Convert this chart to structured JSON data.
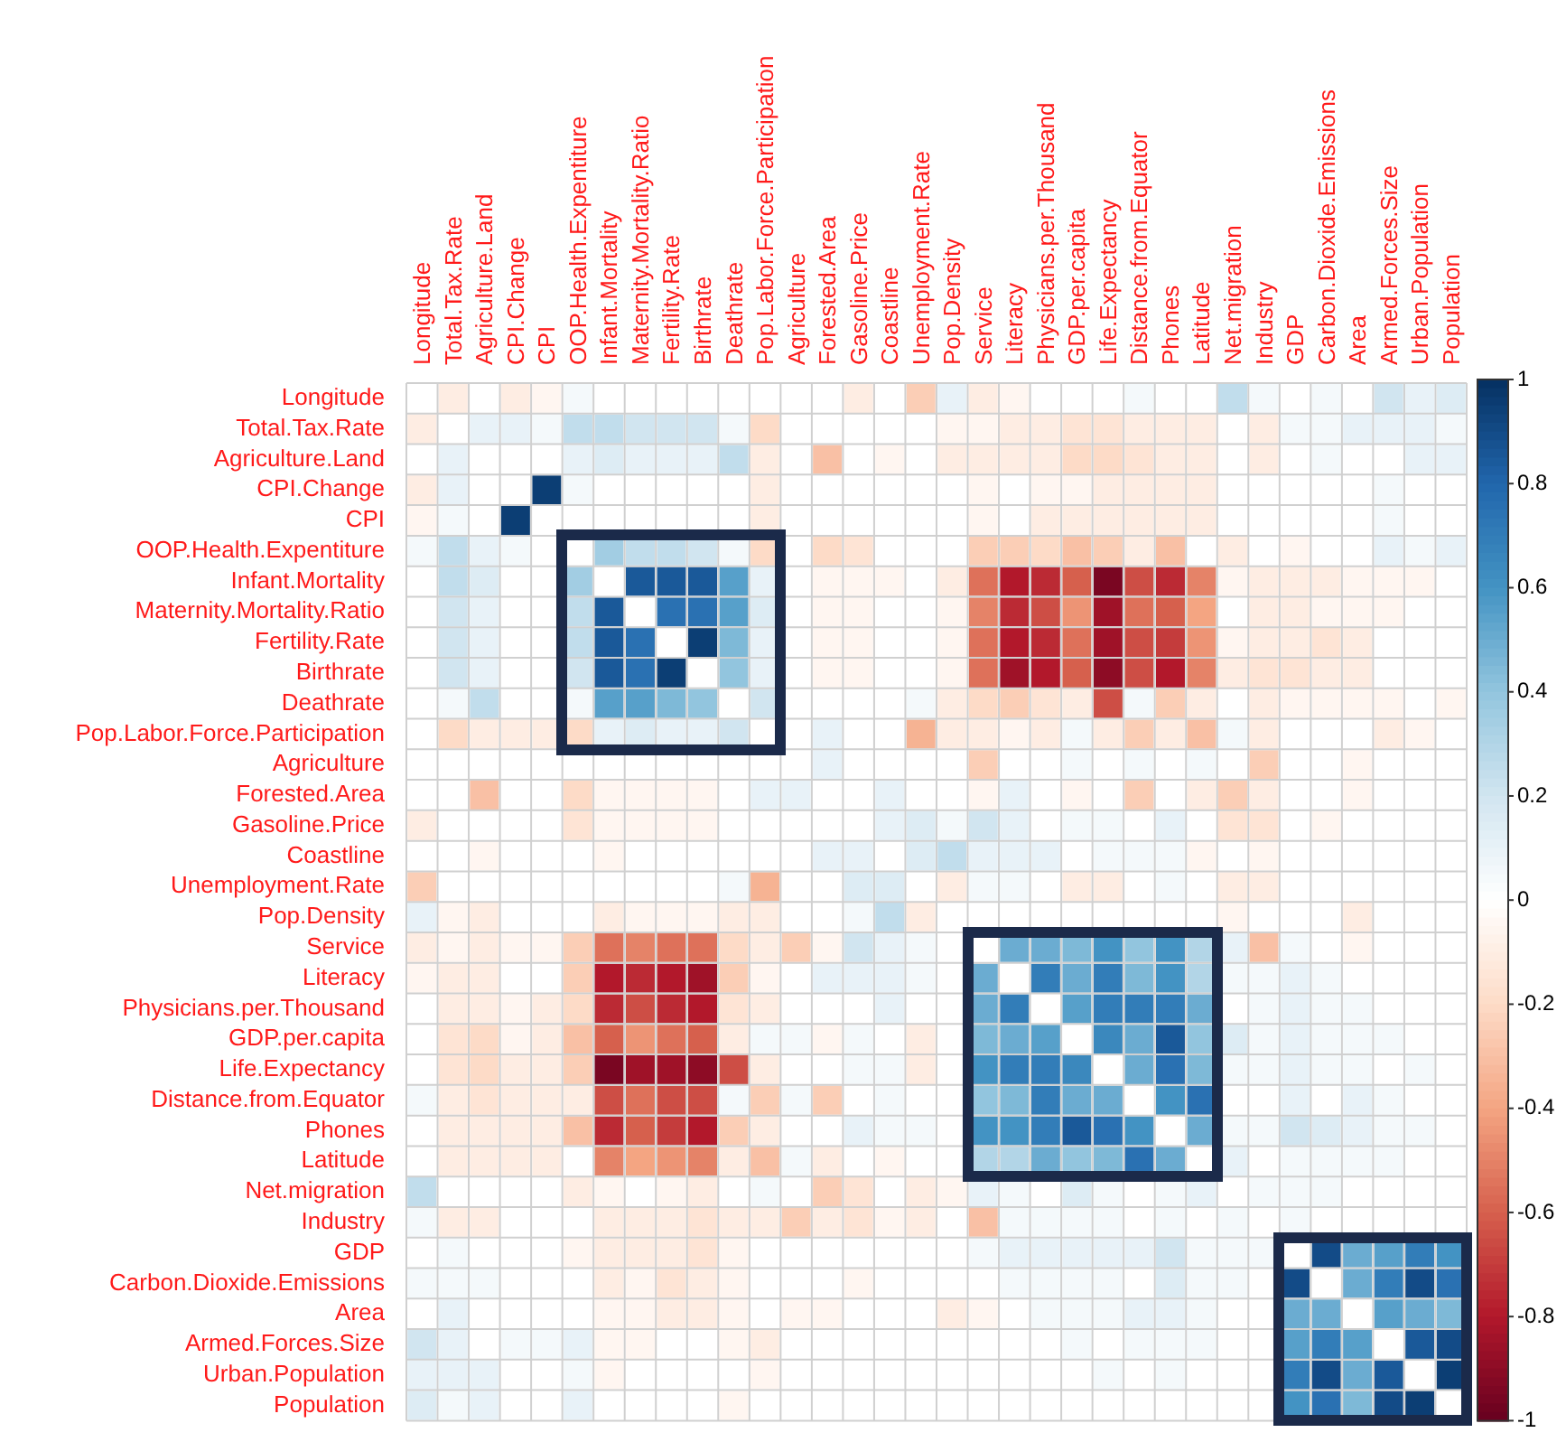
{
  "chart_data": {
    "type": "heatmap",
    "grid": true,
    "clim": [
      -1,
      1
    ],
    "cticks": [
      1,
      0.8,
      0.6,
      0.4,
      0.2,
      0,
      -0.2,
      -0.4,
      -0.6,
      -0.8,
      -1
    ],
    "categories": [
      "Longitude",
      "Total.Tax.Rate",
      "Agriculture.Land",
      "CPI.Change",
      "CPI",
      "OOP.Health.Expentiture",
      "Infant.Mortality",
      "Maternity.Mortality.Ratio",
      "Fertility.Rate",
      "Birthrate",
      "Deathrate",
      "Pop.Labor.Force.Participation",
      "Agriculture",
      "Forested.Area",
      "Gasoline.Price",
      "Coastline",
      "Unemployment.Rate",
      "Pop.Density",
      "Service",
      "Literacy",
      "Physicians.per.Thousand",
      "GDP.per.capita",
      "Life.Expectancy",
      "Distance.from.Equator",
      "Phones",
      "Latitude",
      "Net.migration",
      "Industry",
      "GDP",
      "Carbon.Dioxide.Emissions",
      "Area",
      "Armed.Forces.Size",
      "Urban.Population",
      "Population"
    ],
    "y_categories": [
      "Longitude",
      "Total.Tax.Rate",
      "Agriculture.Land",
      "CPI.Change",
      "CPI",
      "OOP.Health.Expentiture",
      "Infant.Mortality",
      "Maternity.Mortality.Ratio",
      "Fertility.Rate",
      "Birthrate",
      "Deathrate",
      "Pop.Labor.Force.Participation",
      "Agriculture",
      "Forested.Area",
      "Gasoline.Price",
      "Coastline",
      "Unemployment.Rate",
      "Pop.Density",
      "Service",
      "Literacy",
      "Physicians.per.Thousand",
      "GDP.per.capita",
      "Life.Expectancy",
      "Distance.from.Equator",
      "Phones",
      "Latitude",
      "Net.migration",
      "Industry",
      "GDP",
      "Carbon.Dioxide.Emissions",
      "Area",
      "Armed.Forces.Size",
      "Urban.Population",
      "Population"
    ],
    "cells": [
      [
        null,
        -0.1,
        0,
        -0.1,
        -0.05,
        0.05,
        0,
        0,
        0,
        0,
        0,
        0,
        0,
        0,
        -0.1,
        0,
        -0.25,
        0.1,
        -0.1,
        -0.05,
        0,
        0,
        0,
        0.05,
        0,
        0,
        0.25,
        0.05,
        0,
        0.05,
        0,
        0.2,
        0.1,
        0.15
      ],
      [
        -0.1,
        null,
        0.1,
        0.1,
        0.05,
        0.25,
        0.25,
        0.2,
        0.2,
        0.2,
        0.05,
        -0.2,
        0,
        0,
        0,
        0,
        0,
        -0.05,
        -0.05,
        -0.1,
        -0.1,
        -0.15,
        -0.15,
        -0.1,
        -0.1,
        -0.1,
        0,
        -0.1,
        0.05,
        0.05,
        0.1,
        0.1,
        0.1,
        0.05
      ],
      [
        0,
        0.1,
        null,
        0,
        0,
        0.1,
        0.15,
        0.1,
        0.1,
        0.1,
        0.25,
        -0.1,
        0,
        -0.3,
        0,
        -0.05,
        0,
        -0.1,
        -0.1,
        -0.1,
        -0.1,
        -0.2,
        -0.2,
        -0.15,
        -0.1,
        -0.1,
        0,
        -0.1,
        0,
        0.05,
        0,
        0,
        0.1,
        0.1
      ],
      [
        -0.1,
        0.1,
        0,
        null,
        0.95,
        0.05,
        0,
        0,
        0,
        0,
        0,
        -0.1,
        0,
        0,
        0,
        0,
        0,
        0,
        -0.05,
        0,
        -0.05,
        -0.05,
        -0.1,
        -0.1,
        -0.1,
        -0.1,
        0,
        0,
        0,
        0,
        0,
        0.05,
        0,
        0
      ],
      [
        -0.05,
        0.05,
        0,
        0.95,
        null,
        0,
        0,
        0,
        0,
        0,
        0,
        -0.1,
        0,
        0,
        0,
        0,
        0,
        0,
        -0.05,
        0,
        -0.1,
        -0.1,
        -0.1,
        -0.1,
        -0.1,
        -0.1,
        0,
        0,
        0,
        0,
        0,
        0.05,
        0,
        0
      ],
      [
        0.05,
        0.25,
        0.1,
        0.05,
        0,
        null,
        0.35,
        0.25,
        0.25,
        0.2,
        0.05,
        -0.2,
        0,
        -0.2,
        -0.15,
        0,
        0,
        0,
        -0.25,
        -0.25,
        -0.2,
        -0.3,
        -0.25,
        -0.1,
        -0.3,
        0,
        -0.1,
        0,
        -0.05,
        0,
        0,
        0.1,
        0.05,
        0.1
      ],
      [
        0,
        0.25,
        0.15,
        0,
        0,
        0.35,
        null,
        0.85,
        0.85,
        0.85,
        0.55,
        0.1,
        0,
        -0.05,
        -0.05,
        -0.05,
        0,
        -0.1,
        -0.55,
        -0.8,
        -0.75,
        -0.6,
        -0.95,
        -0.65,
        -0.75,
        -0.5,
        -0.05,
        -0.1,
        -0.1,
        -0.1,
        -0.05,
        -0.05,
        -0.05,
        0
      ],
      [
        0,
        0.2,
        0.1,
        0,
        0,
        0.25,
        0.85,
        null,
        0.75,
        0.75,
        0.55,
        0.15,
        0,
        -0.05,
        -0.05,
        0,
        0,
        -0.05,
        -0.5,
        -0.75,
        -0.65,
        -0.45,
        -0.85,
        -0.55,
        -0.6,
        -0.4,
        0,
        -0.1,
        -0.1,
        -0.05,
        -0.05,
        -0.05,
        0,
        0
      ],
      [
        0,
        0.2,
        0.1,
        0,
        0,
        0.25,
        0.85,
        0.75,
        null,
        0.95,
        0.45,
        0.1,
        0,
        -0.05,
        -0.05,
        0,
        0,
        -0.05,
        -0.55,
        -0.8,
        -0.75,
        -0.55,
        -0.85,
        -0.65,
        -0.7,
        -0.45,
        -0.05,
        -0.1,
        -0.1,
        -0.15,
        -0.1,
        0,
        0,
        0
      ],
      [
        0,
        0.2,
        0.1,
        0,
        0,
        0.2,
        0.85,
        0.75,
        0.95,
        null,
        0.4,
        0.1,
        0,
        -0.05,
        -0.05,
        0,
        0,
        -0.05,
        -0.55,
        -0.85,
        -0.8,
        -0.6,
        -0.9,
        -0.65,
        -0.8,
        -0.5,
        -0.1,
        -0.15,
        -0.15,
        -0.1,
        -0.1,
        0,
        0,
        0
      ],
      [
        0,
        0.05,
        0.25,
        0,
        0,
        0.05,
        0.55,
        0.55,
        0.45,
        0.4,
        null,
        0.2,
        0,
        0,
        0,
        0,
        0.05,
        -0.1,
        -0.2,
        -0.25,
        -0.15,
        -0.1,
        -0.65,
        0.05,
        -0.25,
        -0.1,
        0,
        -0.1,
        -0.05,
        -0.05,
        -0.05,
        -0.05,
        0,
        -0.05
      ],
      [
        0,
        -0.2,
        -0.1,
        -0.1,
        -0.1,
        -0.2,
        0.1,
        0.15,
        0.1,
        0.1,
        0.2,
        null,
        0,
        0.1,
        0,
        0,
        -0.35,
        -0.1,
        -0.1,
        -0.05,
        -0.1,
        0.05,
        -0.1,
        -0.25,
        -0.1,
        -0.3,
        0.05,
        -0.1,
        0,
        0,
        0,
        -0.1,
        -0.05,
        0
      ],
      [
        0,
        0,
        0,
        0,
        0,
        0,
        0,
        0,
        0,
        0,
        0,
        0,
        null,
        0.1,
        0,
        0,
        0,
        0,
        -0.25,
        0,
        0,
        0.05,
        0,
        0.05,
        0,
        0.05,
        0,
        -0.25,
        0,
        0,
        -0.05,
        0,
        0,
        0
      ],
      [
        0,
        0,
        -0.3,
        0,
        0,
        -0.2,
        -0.05,
        -0.05,
        -0.05,
        -0.05,
        0,
        0.1,
        0.1,
        null,
        0,
        0.1,
        0,
        0,
        -0.05,
        0.1,
        0,
        -0.05,
        0,
        -0.25,
        0,
        -0.1,
        -0.25,
        -0.1,
        0,
        0,
        -0.05,
        0,
        0,
        0
      ],
      [
        -0.1,
        0,
        0,
        0,
        0,
        -0.15,
        -0.05,
        -0.05,
        -0.05,
        -0.05,
        0,
        0,
        0,
        0,
        null,
        0.1,
        0.15,
        0.05,
        0.2,
        0.1,
        0,
        0.05,
        0.05,
        0,
        0.1,
        0,
        -0.15,
        -0.15,
        0,
        -0.05,
        0,
        0,
        0,
        0
      ],
      [
        0,
        0,
        -0.05,
        0,
        0,
        0,
        -0.05,
        0,
        0,
        0,
        0,
        0,
        0,
        0.1,
        0.1,
        null,
        0.15,
        0.25,
        0.1,
        0.1,
        0.1,
        0,
        0.05,
        0.05,
        0.05,
        -0.05,
        0,
        -0.05,
        0,
        0,
        0,
        0,
        0,
        0
      ],
      [
        -0.25,
        0,
        0,
        0,
        0,
        0,
        0,
        0,
        0,
        0,
        0.05,
        -0.35,
        0,
        0,
        0.15,
        0.15,
        null,
        -0.1,
        0.05,
        0.05,
        0,
        -0.1,
        -0.1,
        0,
        0.05,
        0,
        -0.1,
        -0.1,
        0,
        0,
        0,
        0,
        0,
        0
      ],
      [
        0.1,
        -0.05,
        -0.1,
        0,
        0,
        0,
        -0.1,
        -0.05,
        -0.05,
        -0.05,
        -0.1,
        -0.1,
        0,
        0,
        0.05,
        0.25,
        -0.1,
        null,
        0,
        0,
        0,
        0,
        0,
        0,
        0,
        0,
        -0.05,
        0,
        0,
        0,
        -0.1,
        0,
        0,
        0
      ],
      [
        -0.1,
        -0.05,
        -0.1,
        -0.05,
        -0.05,
        -0.25,
        -0.55,
        -0.5,
        -0.55,
        -0.55,
        -0.2,
        -0.1,
        -0.25,
        -0.05,
        0.2,
        0.1,
        0.05,
        0,
        null,
        0.5,
        0.5,
        0.45,
        0.6,
        0.4,
        0.6,
        0.3,
        0.1,
        -0.3,
        0.05,
        0,
        -0.05,
        0,
        0,
        0
      ],
      [
        -0.05,
        -0.1,
        -0.1,
        0,
        0,
        -0.25,
        -0.8,
        -0.75,
        -0.8,
        -0.85,
        -0.25,
        -0.05,
        0,
        0.1,
        0.1,
        0.1,
        0.05,
        0,
        0.5,
        null,
        0.7,
        0.5,
        0.7,
        0.45,
        0.6,
        0.3,
        0.05,
        0.05,
        0.1,
        0.05,
        0,
        0,
        0,
        0
      ],
      [
        0,
        -0.1,
        -0.1,
        -0.05,
        -0.1,
        -0.2,
        -0.75,
        -0.65,
        -0.75,
        -0.8,
        -0.15,
        -0.1,
        0,
        0,
        0,
        0.1,
        0,
        0,
        0.5,
        0.7,
        null,
        0.55,
        0.7,
        0.7,
        0.7,
        0.5,
        0,
        0.05,
        0.1,
        0.05,
        0.05,
        0,
        0,
        0
      ],
      [
        0,
        -0.15,
        -0.2,
        -0.05,
        -0.1,
        -0.3,
        -0.6,
        -0.45,
        -0.55,
        -0.6,
        -0.1,
        0.05,
        0.05,
        -0.05,
        0.05,
        0,
        -0.1,
        0,
        0.45,
        0.5,
        0.55,
        null,
        0.65,
        0.5,
        0.85,
        0.4,
        0.15,
        0.05,
        0.1,
        0.05,
        0.05,
        0.05,
        0,
        0
      ],
      [
        0,
        -0.15,
        -0.2,
        -0.1,
        -0.1,
        -0.25,
        -0.95,
        -0.85,
        -0.85,
        -0.9,
        -0.65,
        -0.1,
        0,
        0,
        0.05,
        0.05,
        -0.1,
        0,
        0.6,
        0.7,
        0.7,
        0.65,
        null,
        0.5,
        0.75,
        0.45,
        0.05,
        0.05,
        0.1,
        0.05,
        0.05,
        0,
        0.05,
        0
      ],
      [
        0.05,
        -0.1,
        -0.15,
        -0.1,
        -0.1,
        -0.1,
        -0.65,
        -0.55,
        -0.65,
        -0.65,
        0.05,
        -0.25,
        0.05,
        -0.25,
        0,
        0.05,
        0,
        0,
        0.4,
        0.45,
        0.7,
        0.5,
        0.5,
        null,
        0.6,
        0.75,
        0,
        0,
        0.1,
        0,
        0.1,
        0.05,
        0,
        0
      ],
      [
        0,
        -0.1,
        -0.1,
        -0.1,
        -0.1,
        -0.3,
        -0.75,
        -0.6,
        -0.7,
        -0.8,
        -0.25,
        -0.1,
        0,
        0,
        0.1,
        0.05,
        0.05,
        0,
        0.6,
        0.6,
        0.7,
        0.85,
        0.75,
        0.6,
        null,
        0.5,
        0.05,
        0.05,
        0.2,
        0.15,
        0.1,
        0.05,
        0.05,
        0
      ],
      [
        0,
        -0.1,
        -0.1,
        -0.1,
        -0.1,
        0,
        -0.5,
        -0.4,
        -0.45,
        -0.5,
        -0.1,
        -0.3,
        0.05,
        -0.1,
        0,
        -0.05,
        0,
        0,
        0.3,
        0.3,
        0.5,
        0.4,
        0.45,
        0.75,
        0.5,
        null,
        0.1,
        0,
        0.05,
        0.05,
        0.05,
        0.05,
        0,
        0
      ],
      [
        0.25,
        0,
        0,
        0,
        0,
        -0.1,
        -0.05,
        0,
        -0.05,
        -0.1,
        0,
        0.05,
        0,
        -0.25,
        -0.15,
        0,
        -0.1,
        -0.05,
        0.1,
        0.05,
        0,
        0.15,
        0.05,
        0,
        0.05,
        0.1,
        null,
        0.05,
        0.05,
        0.05,
        0,
        0,
        0,
        0
      ],
      [
        0.05,
        -0.1,
        -0.1,
        0,
        0,
        0,
        -0.1,
        -0.1,
        -0.1,
        -0.15,
        -0.1,
        -0.1,
        -0.25,
        -0.1,
        -0.15,
        -0.05,
        -0.1,
        0,
        -0.3,
        0.05,
        0.05,
        0.05,
        0.05,
        0,
        0.05,
        0,
        0.05,
        null,
        0.05,
        0,
        0,
        0,
        0,
        0
      ],
      [
        0,
        0.05,
        0,
        0,
        0,
        -0.05,
        -0.1,
        -0.1,
        -0.1,
        -0.15,
        -0.05,
        0,
        0,
        0,
        0,
        0,
        0,
        0,
        0.05,
        0.1,
        0.1,
        0.1,
        0.1,
        0.1,
        0.2,
        0.05,
        0.05,
        0.05,
        null,
        0.9,
        0.5,
        0.55,
        0.7,
        0.6
      ],
      [
        0.05,
        0.05,
        0.05,
        0,
        0,
        0,
        -0.1,
        -0.05,
        -0.15,
        -0.1,
        -0.05,
        0,
        0,
        0,
        -0.05,
        0,
        0,
        0,
        0,
        0.05,
        0.05,
        0.05,
        0.05,
        0,
        0.15,
        0.05,
        0.05,
        0,
        0.9,
        null,
        0.5,
        0.7,
        0.9,
        0.75
      ],
      [
        0,
        0.1,
        0,
        0,
        0,
        0,
        -0.05,
        -0.05,
        -0.1,
        -0.1,
        -0.05,
        0,
        -0.05,
        -0.05,
        0,
        0,
        0,
        -0.1,
        -0.05,
        0,
        0.05,
        0.05,
        0.05,
        0.1,
        0.1,
        0.05,
        0,
        0,
        0.5,
        0.5,
        null,
        0.55,
        0.5,
        0.45
      ],
      [
        0.2,
        0.1,
        0,
        0.05,
        0.05,
        0.1,
        -0.05,
        -0.05,
        0,
        0,
        -0.05,
        -0.1,
        0,
        0,
        0,
        0,
        0,
        0,
        0,
        0,
        0,
        0.05,
        0,
        0.05,
        0.05,
        0.05,
        0,
        0,
        0.55,
        0.7,
        0.55,
        null,
        0.85,
        0.9
      ],
      [
        0.1,
        0.1,
        0.1,
        0,
        0,
        0.05,
        -0.05,
        0,
        0,
        0,
        0,
        -0.05,
        0,
        0,
        0,
        0,
        0,
        0,
        0,
        0,
        0,
        0,
        0.05,
        0,
        0.05,
        0,
        0,
        0,
        0.7,
        0.9,
        0.5,
        0.85,
        null,
        0.95
      ],
      [
        0.15,
        0.05,
        0.1,
        0,
        0,
        0.1,
        0,
        0,
        0,
        0,
        -0.05,
        0,
        0,
        0,
        0,
        0,
        0,
        0,
        0,
        0,
        0,
        0,
        0,
        0,
        0,
        0,
        0,
        0,
        0.6,
        0.75,
        0.45,
        0.9,
        0.95,
        null
      ]
    ]
  }
}
